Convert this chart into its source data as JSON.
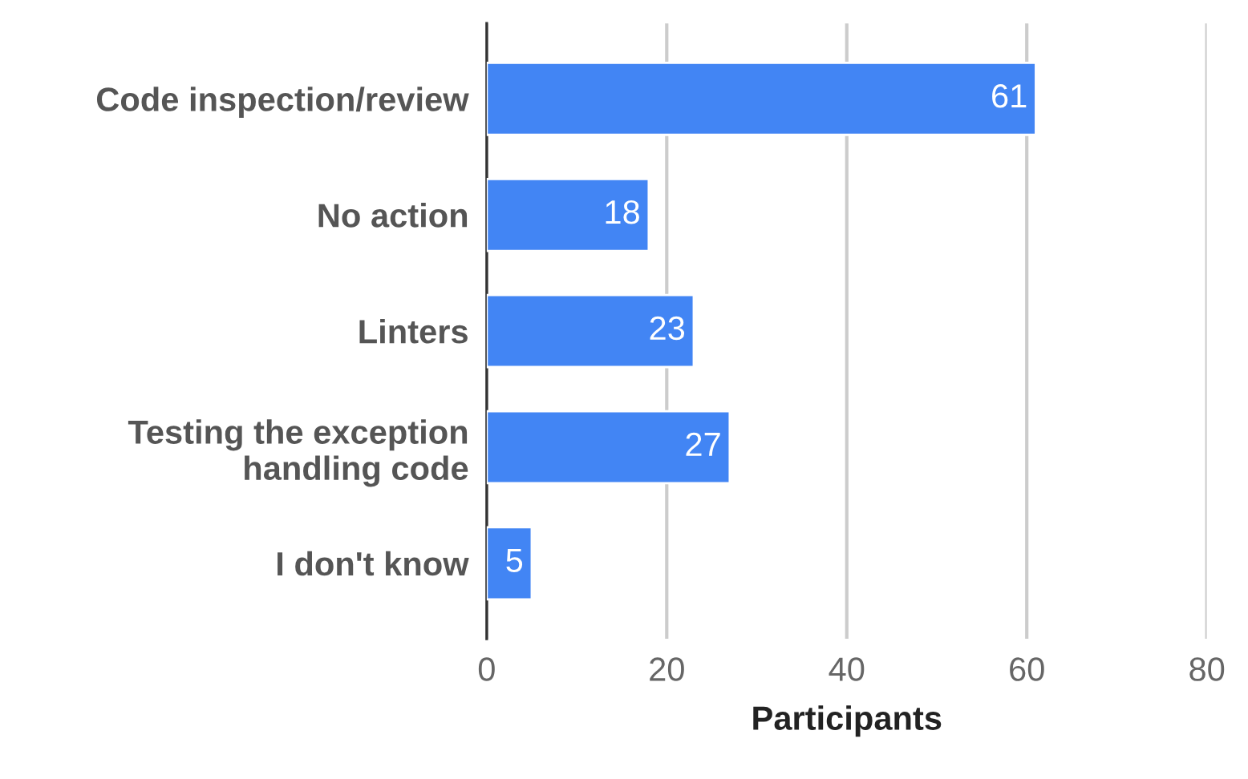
{
  "chart_data": {
    "type": "bar",
    "orientation": "horizontal",
    "xlabel": "Participants",
    "categories": [
      "Code inspection/review",
      "No action",
      "Linters",
      "Testing the exception\nhandling code",
      "I don't know"
    ],
    "values": [
      61,
      18,
      23,
      27,
      5
    ],
    "color": "#4285f4",
    "xlim": [
      0,
      80
    ],
    "xticks": [
      0,
      20,
      40,
      60,
      80
    ],
    "grid": "x",
    "data_labels": true,
    "legend": false
  }
}
